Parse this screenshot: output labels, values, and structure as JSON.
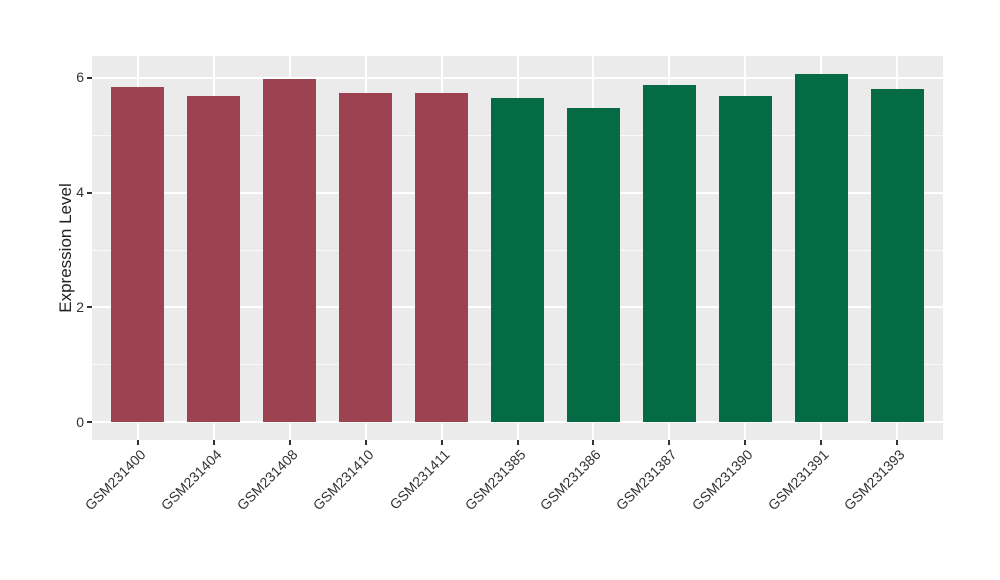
{
  "chart_data": {
    "type": "bar",
    "title": "",
    "xlabel": "",
    "ylabel": "Expression Level",
    "categories": [
      "GSM231400",
      "GSM231404",
      "GSM231408",
      "GSM231410",
      "GSM231411",
      "GSM231385",
      "GSM231386",
      "GSM231387",
      "GSM231390",
      "GSM231391",
      "GSM231393"
    ],
    "values": [
      5.84,
      5.68,
      5.98,
      5.74,
      5.73,
      5.64,
      5.48,
      5.88,
      5.68,
      6.06,
      5.81
    ],
    "bar_colors": [
      "#9C4251",
      "#9C4251",
      "#9C4251",
      "#9C4251",
      "#9C4251",
      "#046B45",
      "#046B45",
      "#046B45",
      "#046B45",
      "#046B45",
      "#046B45"
    ],
    "group_colors": {
      "red_group": "#9C4251",
      "green_group": "#046B45"
    },
    "yticks": [
      0,
      2,
      4,
      6
    ],
    "yticks_minor": [
      1,
      3,
      5
    ],
    "ylim": [
      -0.3,
      6.38
    ],
    "grid": true,
    "legend": false,
    "panel_background": "#EBEBEB",
    "grid_color": "#FFFFFF",
    "tick_color": "#333333",
    "axis_text_color": "#333333",
    "axis_title_color": "#222222",
    "background": "#FFFFFF"
  }
}
